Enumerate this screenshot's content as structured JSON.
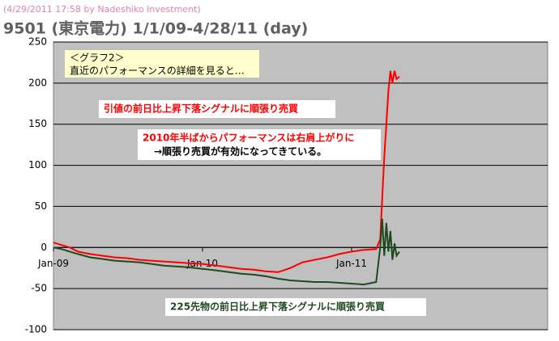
{
  "header": "(4/29/2011 17:58 by Nadeshiko Investment)",
  "chart_data": {
    "type": "line",
    "title": "9501 (東京電力)  1/1/09-4/28/11 (day)",
    "x": [
      0,
      20,
      40,
      60,
      90,
      120,
      150,
      180,
      210,
      240,
      270,
      300,
      330,
      365,
      400,
      430,
      460,
      490,
      520,
      550,
      580,
      610,
      640,
      670,
      700,
      730,
      760,
      790,
      800,
      805,
      810,
      815,
      820,
      825,
      830,
      835,
      840,
      847
    ],
    "xlim": [
      0,
      1210
    ],
    "xticks": [
      {
        "value": 0,
        "label": "Jan-09"
      },
      {
        "value": 365,
        "label": "Jan-10"
      },
      {
        "value": 730,
        "label": "Jan-11"
      }
    ],
    "ylim": [
      -100,
      250
    ],
    "yticks": [
      -100,
      -50,
      0,
      50,
      100,
      150,
      200,
      250
    ],
    "grid": true,
    "series": [
      {
        "name": "引値の前日比上昇下落シグナルに順張り売買",
        "color": "#ff0000",
        "values": [
          6,
          3,
          0,
          -5,
          -8,
          -10,
          -12,
          -13,
          -15,
          -16,
          -17,
          -18,
          -19,
          -20,
          -22,
          -24,
          -26,
          -27,
          -29,
          -30,
          -25,
          -18,
          -15,
          -12,
          -8,
          -5,
          -3,
          -2,
          10,
          60,
          110,
          150,
          190,
          215,
          200,
          215,
          205,
          208
        ]
      },
      {
        "name": "225先物の前日比上昇下落シグナルに順張り売買",
        "color": "#1e4a1e",
        "values": [
          0,
          -2,
          -5,
          -8,
          -12,
          -14,
          -16,
          -17,
          -18,
          -20,
          -22,
          -23,
          -24,
          -26,
          -28,
          -30,
          -32,
          -33,
          -35,
          -38,
          -40,
          -41,
          -42,
          -42,
          -43,
          -44,
          -45,
          -42,
          0,
          35,
          -10,
          30,
          -5,
          20,
          -15,
          5,
          -10,
          -5
        ]
      }
    ],
    "annotations": [
      "＜グラフ2＞",
      "直近のパフォーマンスの詳細を見ると…",
      "2010年半ばからパフォーマンスは右肩上がりに",
      "→順張り売買が有効になってきている。"
    ]
  }
}
